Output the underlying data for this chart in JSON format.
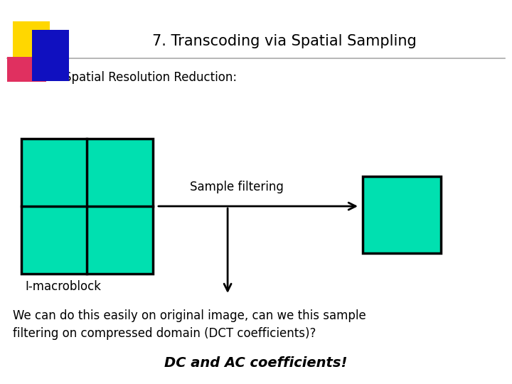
{
  "title": "7. Transcoding via Spatial Sampling",
  "subtitle": "Spatial Resolution Reduction:",
  "body_text": "We can do this easily on original image, can we this sample\nfiltering on compressed domain (DCT coefficients)?",
  "bold_text": "DC and AC coefficients!",
  "sample_filtering_label": "Sample filtering",
  "i_macroblock_label": "I-macroblock",
  "bg_color": "#ffffff",
  "teal_color": "#00e0b0",
  "box_edge_color": "#000000",
  "title_color": "#000000",
  "text_color": "#000000",
  "header_line_color": "#aaaaaa",
  "deco_yellow": "#ffd700",
  "deco_red": "#e03060",
  "deco_blue": "#1010c0"
}
